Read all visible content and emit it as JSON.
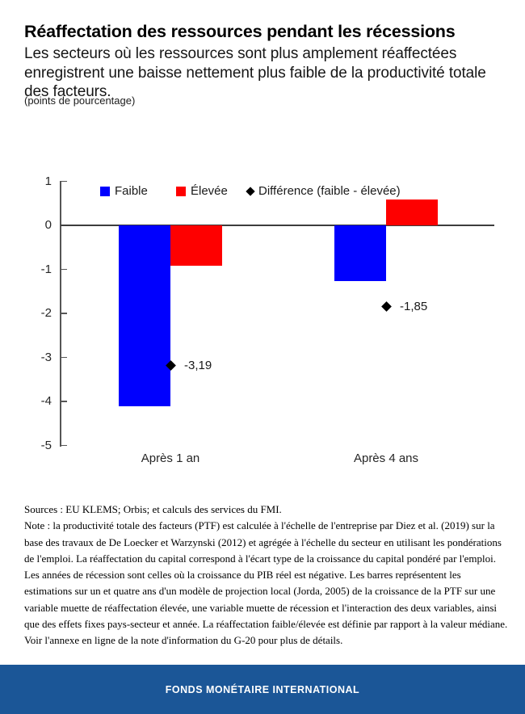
{
  "page": {
    "title": "Réaffectation des ressources pendant les récessions",
    "subtitle": "Les secteurs où les ressources sont plus amplement réaffectées enregistrent une baisse nettement plus faible de la productivité totale des facteurs.",
    "unit_label": "(points de pourcentage)"
  },
  "colors": {
    "faible": "#0000FE",
    "elevee": "#FE0000",
    "difference": "#000000",
    "axis": "#555555",
    "zero_line": "#3D3D3D",
    "footer_bg": "#1B5697",
    "footer_text": "#FFFFFF"
  },
  "chart_data": {
    "type": "bar",
    "categories": [
      "Après 1 an",
      "Après 4 ans"
    ],
    "series": [
      {
        "name": "Faible",
        "color_key": "faible",
        "values": [
          -4.11,
          -1.26
        ]
      },
      {
        "name": "Élevée",
        "color_key": "elevee",
        "values": [
          -0.92,
          0.59
        ]
      }
    ],
    "markers": {
      "name": "Différence (faible - élevée)",
      "values": [
        -3.19,
        -1.85
      ],
      "labels": [
        "-3,19",
        "-1,85"
      ]
    },
    "title": "Réaffectation des ressources pendant les récessions",
    "xlabel": "",
    "ylabel": "points de pourcentage",
    "ylim": [
      -5,
      1
    ],
    "yticks": [
      1,
      0,
      -1,
      -2,
      -3,
      -4,
      -5
    ],
    "grid": false,
    "legend_position": "top"
  },
  "legend": {
    "items": [
      {
        "label": "Faible",
        "marker": "square",
        "color_key": "faible"
      },
      {
        "label": "Élevée",
        "marker": "square",
        "color_key": "elevee"
      },
      {
        "label": "Différence (faible - élevée)",
        "marker": "diamond",
        "color_key": "difference"
      }
    ]
  },
  "notes": {
    "sources": "Sources : EU KLEMS; Orbis; et calculs des services du FMI.",
    "note": "Note : la productivité totale des facteurs (PTF) est calculée à l'échelle de l'entreprise par Diez et al. (2019) sur la base des travaux de De Loecker et Warzynski (2012) et agrégée à l'échelle du secteur en utilisant les pondérations de l'emploi. La réaffectation du capital correspond à l'écart type de la croissance du capital pondéré par l'emploi. Les années de récession sont celles où la croissance du PIB réel est négative. Les barres représentent les estimations sur un et quatre ans d'un modèle de projection local (Jorda, 2005) de la croissance de la PTF sur une variable muette de réaffectation élevée, une variable muette de récession et l'interaction des deux variables, ainsi que des effets fixes pays-secteur et année. La réaffectation faible/élevée est définie par rapport à la valeur médiane. Voir l'annexe en ligne de la note d'information du G-20 pour plus de détails."
  },
  "footer": {
    "label": "FONDS MONÉTAIRE INTERNATIONAL"
  }
}
